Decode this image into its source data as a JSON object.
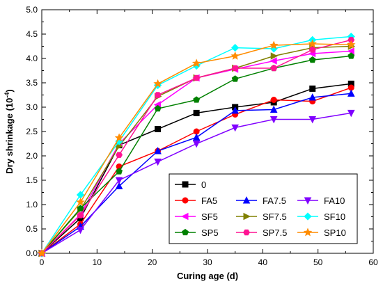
{
  "chart_data": {
    "type": "line",
    "xlabel": "Curing age (d)",
    "ylabel_main": "Dry shrinkage (10",
    "ylabel_exp": "-4",
    "ylabel_close": ")",
    "xlim": [
      0,
      60
    ],
    "ylim": [
      0,
      5
    ],
    "xticks": [
      0,
      10,
      20,
      30,
      40,
      50,
      60
    ],
    "yticks": [
      0.0,
      0.5,
      1.0,
      1.5,
      2.0,
      2.5,
      3.0,
      3.5,
      4.0,
      4.5,
      5.0
    ],
    "ytick_labels": [
      "0.0",
      "0.5",
      "1.0",
      "1.5",
      "2.0",
      "2.5",
      "3.0",
      "3.5",
      "4.0",
      "4.5",
      "5.0"
    ],
    "grid": false,
    "legend_position": "bottom-right",
    "x": [
      0,
      7,
      14,
      21,
      28,
      35,
      42,
      49,
      56
    ],
    "series": [
      {
        "name": "0",
        "color": "#000000",
        "marker": "square",
        "values": [
          0.0,
          0.72,
          2.22,
          2.55,
          2.88,
          3.0,
          3.1,
          3.38,
          3.48
        ]
      },
      {
        "name": "FA5",
        "color": "#ff0000",
        "marker": "circle",
        "values": [
          0.0,
          0.6,
          1.78,
          2.1,
          2.5,
          2.85,
          3.15,
          3.12,
          3.4
        ]
      },
      {
        "name": "FA7.5",
        "color": "#0000ff",
        "marker": "triangle-up",
        "values": [
          0.0,
          0.55,
          1.38,
          2.1,
          2.38,
          2.93,
          2.95,
          3.2,
          3.28
        ]
      },
      {
        "name": "FA10",
        "color": "#8000ff",
        "marker": "triangle-down",
        "values": [
          0.0,
          0.48,
          1.5,
          1.88,
          2.25,
          2.58,
          2.75,
          2.75,
          2.88
        ]
      },
      {
        "name": "SF5",
        "color": "#ff00ff",
        "marker": "triangle-left",
        "values": [
          0.0,
          0.8,
          2.25,
          3.05,
          3.6,
          3.78,
          3.95,
          4.1,
          4.15
        ]
      },
      {
        "name": "SF7.5",
        "color": "#808000",
        "marker": "triangle-right",
        "values": [
          0.0,
          0.9,
          2.2,
          3.22,
          3.6,
          3.8,
          4.05,
          4.22,
          4.25
        ]
      },
      {
        "name": "SF10",
        "color": "#00ffff",
        "marker": "diamond",
        "values": [
          0.0,
          1.2,
          2.3,
          3.45,
          3.85,
          4.22,
          4.2,
          4.38,
          4.45
        ]
      },
      {
        "name": "SP5",
        "color": "#008000",
        "marker": "pentagon",
        "values": [
          0.0,
          0.92,
          1.68,
          2.97,
          3.15,
          3.58,
          3.8,
          3.97,
          4.05
        ]
      },
      {
        "name": "SP7.5",
        "color": "#ff1493",
        "marker": "hexagon",
        "values": [
          0.0,
          0.78,
          2.02,
          3.25,
          3.6,
          3.8,
          3.8,
          4.18,
          4.38
        ]
      },
      {
        "name": "SP10",
        "color": "#ff8c00",
        "marker": "star",
        "values": [
          0.0,
          1.05,
          2.37,
          3.48,
          3.9,
          4.05,
          4.27,
          4.3,
          4.28
        ]
      }
    ]
  }
}
